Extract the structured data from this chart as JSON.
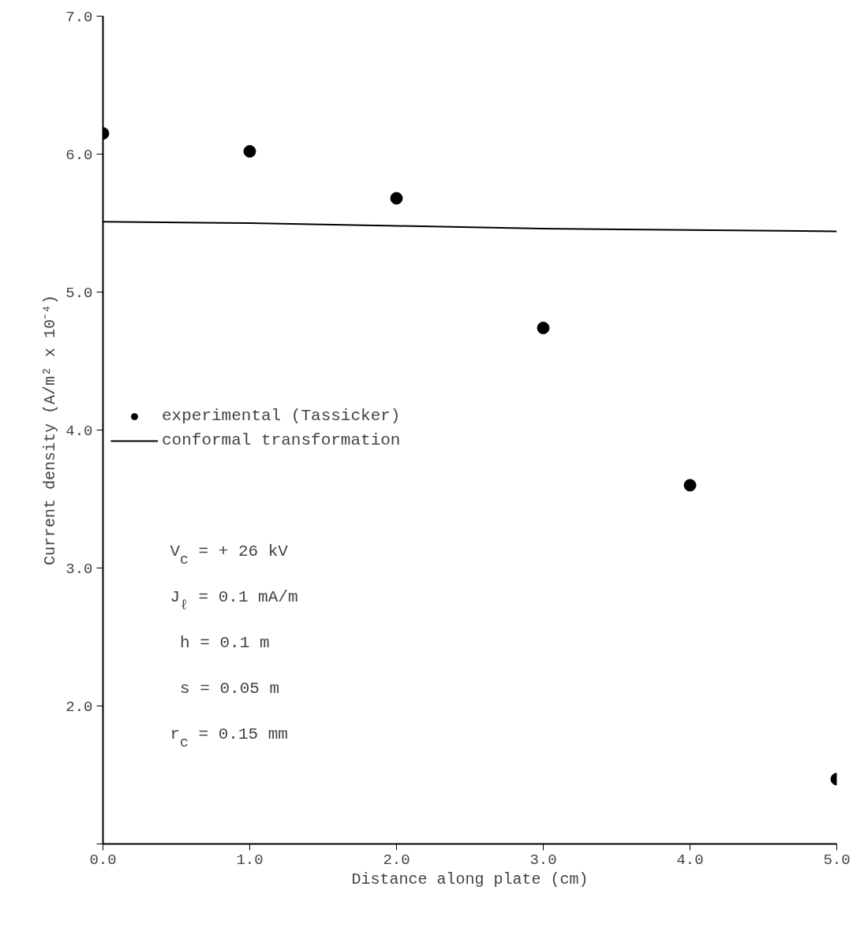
{
  "chart_data": {
    "type": "scatter",
    "xlabel": "Distance along plate (cm)",
    "ylabel": "Current density (A/m² x 10⁻⁴)",
    "xlim": [
      0.0,
      5.0
    ],
    "ylim": [
      1.0,
      7.0
    ],
    "xticks": [
      {
        "value": 0,
        "label": "0.0"
      },
      {
        "value": 1,
        "label": "1.0"
      },
      {
        "value": 2,
        "label": "2.0"
      },
      {
        "value": 3,
        "label": "3.0"
      },
      {
        "value": 4,
        "label": "4.0"
      },
      {
        "value": 5,
        "label": "5.0"
      }
    ],
    "yticks": [
      {
        "value": 1,
        "label": null
      },
      {
        "value": 2,
        "label": "2.0"
      },
      {
        "value": 3,
        "label": "3.0"
      },
      {
        "value": 4,
        "label": "4.0"
      },
      {
        "value": 5,
        "label": "5.0"
      },
      {
        "value": 6,
        "label": "6.0"
      },
      {
        "value": 7,
        "label": "7.0"
      }
    ],
    "grid": false,
    "legend": "left",
    "series": [
      {
        "name": "experimental (Tassicker)",
        "marker": "circle",
        "color": "#000000",
        "x": [
          0,
          1,
          2,
          3,
          4,
          5
        ],
        "values": [
          6.15,
          6.02,
          5.68,
          4.74,
          3.6,
          1.47
        ]
      },
      {
        "name": "conformal transformation",
        "type": "line",
        "marker": "none",
        "line_style": "solid",
        "color": "#000000",
        "x": [
          0,
          1,
          2,
          3,
          4,
          5
        ],
        "values": [
          5.51,
          5.5,
          5.48,
          5.46,
          5.45,
          5.44
        ]
      }
    ],
    "annotations": [
      "V$_{c}$ = + 26 kV",
      "J$_{ℓ}$ = 0.1 mA/m",
      " h = 0.1 m",
      " s = 0.05 m",
      "r$_{c}$ = 0.15 mm"
    ]
  }
}
